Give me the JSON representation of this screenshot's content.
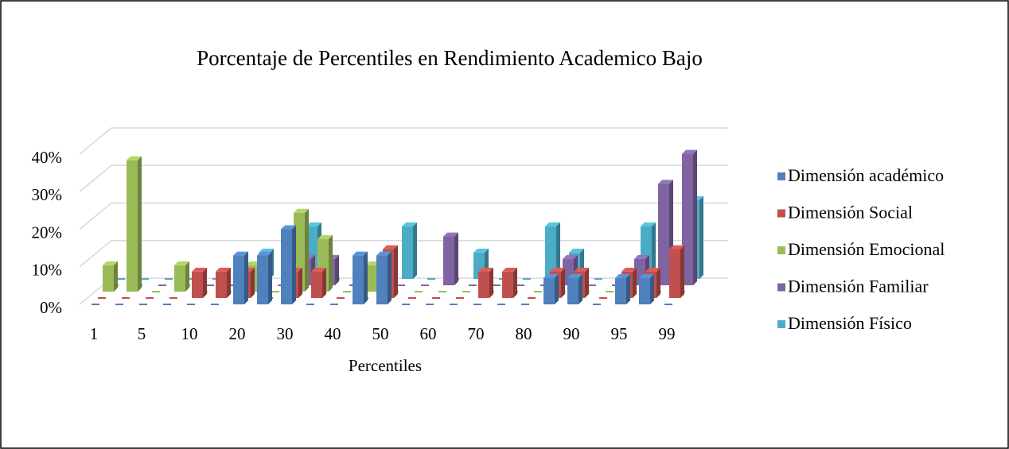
{
  "chart_data": {
    "type": "bar3d",
    "title": "Porcentaje de Percentiles en Rendimiento Academico Bajo",
    "x_label": "Percentiles",
    "categories": [
      "1",
      null,
      "5",
      null,
      "10",
      null,
      "20",
      null,
      "30",
      null,
      "40",
      null,
      "50",
      null,
      "60",
      null,
      "70",
      null,
      "80",
      null,
      "90",
      null,
      "95",
      null,
      "99"
    ],
    "series": [
      {
        "name": "Dimensión académico",
        "color": "#4f81bd",
        "values": [
          0,
          0,
          0,
          0,
          0,
          0,
          13,
          13,
          20,
          0,
          0,
          13,
          13,
          0,
          0,
          0,
          0,
          0,
          0,
          7,
          7,
          0,
          7,
          7,
          0
        ]
      },
      {
        "name": "Dimensión Social",
        "color": "#c0504d",
        "values": [
          0,
          0,
          0,
          0,
          7,
          7,
          7,
          0,
          7,
          7,
          0,
          0,
          13,
          0,
          0,
          0,
          7,
          7,
          0,
          7,
          7,
          0,
          7,
          7,
          13
        ]
      },
      {
        "name": "Dimensión Emocional",
        "color": "#9bbb59",
        "values": [
          7,
          35,
          0,
          7,
          0,
          0,
          7,
          0,
          21,
          14,
          0,
          7,
          0,
          0,
          0,
          0,
          0,
          0,
          0,
          0,
          0,
          0,
          0,
          0,
          0
        ]
      },
      {
        "name": "Dimensión Familiar",
        "color": "#8064a2",
        "values": [
          0,
          0,
          0,
          0,
          0,
          0,
          0,
          0,
          7,
          7,
          0,
          0,
          0,
          0,
          13,
          0,
          0,
          0,
          0,
          7,
          0,
          0,
          7,
          27,
          35
        ]
      },
      {
        "name": "Dimensión Físico",
        "color": "#4bacc6",
        "values": [
          0,
          0,
          0,
          0,
          0,
          0,
          7,
          0,
          14,
          0,
          0,
          0,
          14,
          0,
          0,
          7,
          0,
          0,
          14,
          7,
          0,
          0,
          14,
          7,
          21
        ]
      }
    ],
    "ylim": [
      0,
      40
    ],
    "yticks": [
      {
        "value": 0,
        "label": "0%"
      },
      {
        "value": 10,
        "label": "10%"
      },
      {
        "value": 20,
        "label": "20%"
      },
      {
        "value": 30,
        "label": "30%"
      },
      {
        "value": 40,
        "label": "40%"
      }
    ],
    "grid": true,
    "legend": "right"
  }
}
